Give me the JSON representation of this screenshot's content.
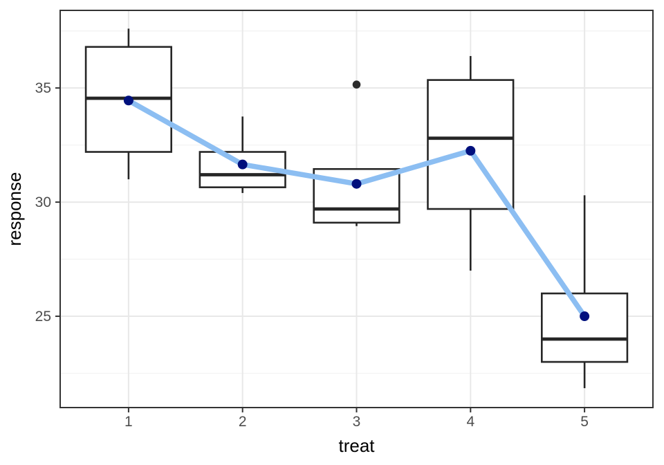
{
  "chart_data": {
    "type": "boxplot",
    "title": "",
    "xlabel": "treat",
    "ylabel": "response",
    "x_tick_labels": [
      "1",
      "2",
      "3",
      "4",
      "5"
    ],
    "x_tick_values": [
      1,
      2,
      3,
      4,
      5
    ],
    "y_tick_labels": [
      "25",
      "30",
      "35"
    ],
    "y_tick_values": [
      25,
      30,
      35
    ],
    "y_minor_gridlines": [
      22.5,
      27.5,
      32.5,
      37.5
    ],
    "x_domain": [
      0.4,
      5.6
    ],
    "y_domain": [
      21.0,
      38.4
    ],
    "box_width_units": 0.75,
    "grid_minor_x": false,
    "legend": "none",
    "boxes": [
      {
        "x": 1,
        "whisker_low": 31.0,
        "q1": 32.2,
        "median": 34.55,
        "q3": 36.8,
        "whisker_high": 37.6,
        "outliers": []
      },
      {
        "x": 2,
        "whisker_low": 30.4,
        "q1": 30.65,
        "median": 31.2,
        "q3": 32.2,
        "whisker_high": 33.75,
        "outliers": []
      },
      {
        "x": 3,
        "whisker_low": 28.95,
        "q1": 29.1,
        "median": 29.7,
        "q3": 31.45,
        "whisker_high": 31.45,
        "outliers": [
          35.15
        ]
      },
      {
        "x": 4,
        "whisker_low": 27.0,
        "q1": 29.7,
        "median": 32.8,
        "q3": 35.35,
        "whisker_high": 36.4,
        "outliers": []
      },
      {
        "x": 5,
        "whisker_low": 21.85,
        "q1": 23.0,
        "median": 24.0,
        "q3": 26.0,
        "whisker_high": 30.3,
        "outliers": []
      }
    ],
    "mean_series": {
      "name": "group-means",
      "x": [
        1,
        2,
        3,
        4,
        5
      ],
      "y": [
        34.45,
        31.65,
        30.8,
        32.25,
        25.0
      ]
    },
    "colors": {
      "panel_bg": "#FFFFFF",
      "panel_border": "#333333",
      "grid_major": "#E8E8E8",
      "grid_minor": "#F3F3F3",
      "box_stroke": "#262626",
      "box_fill": "#FFFFFF",
      "median": "#262626",
      "whisker": "#262626",
      "outlier": "#2B2B2B",
      "mean_line": "#8CBEF2",
      "mean_point": "#00107D",
      "tick_mark": "#333333",
      "tick_label": "#4D4D4D",
      "axis_title": "#000000"
    }
  }
}
